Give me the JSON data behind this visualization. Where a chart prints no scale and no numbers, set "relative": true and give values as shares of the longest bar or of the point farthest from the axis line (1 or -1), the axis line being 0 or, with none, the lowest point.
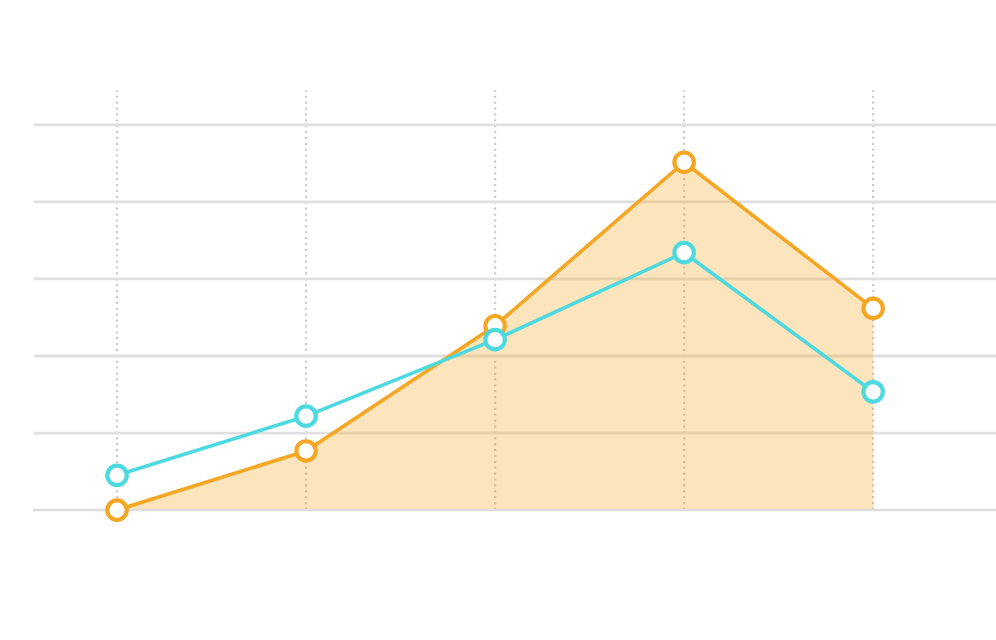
{
  "chart_data": {
    "type": "line",
    "relative": true,
    "categories": [
      null,
      null,
      null,
      null,
      null
    ],
    "grid": true,
    "marker": "circle",
    "line_style": "solid",
    "series": [
      {
        "type": "area",
        "color": "#f5a623",
        "values": [
          0,
          0.17,
          0.53,
          1,
          0.58
        ]
      },
      {
        "color": "#4dd9e0",
        "values": [
          0.1,
          0.27,
          0.49,
          0.74,
          0.34
        ]
      }
    ]
  }
}
